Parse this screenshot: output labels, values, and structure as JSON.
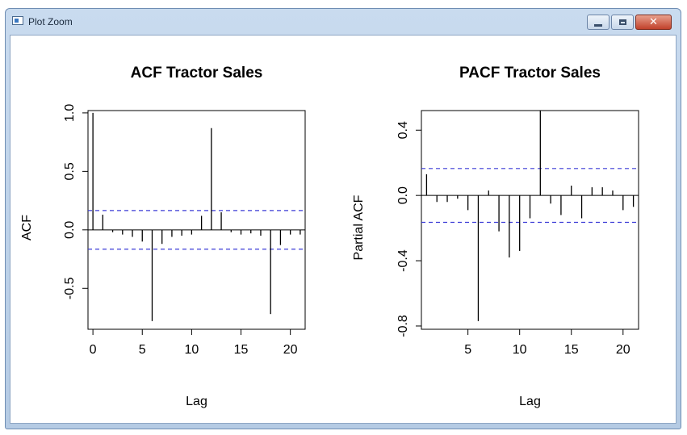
{
  "window": {
    "title": "Plot Zoom",
    "controls": {
      "minimize": "minimize",
      "maximize": "maximize",
      "close": "✕"
    }
  },
  "chart_data": [
    {
      "type": "bar",
      "title": "ACF Tractor Sales",
      "xlabel": "Lag",
      "ylabel": "ACF",
      "xlim": [
        -0.5,
        21.5
      ],
      "ylim": [
        -0.85,
        1.02
      ],
      "xticks": [
        0,
        5,
        10,
        15,
        20
      ],
      "xtick_labels": [
        "0",
        "5",
        "10",
        "15",
        "20"
      ],
      "yticks": [
        -0.5,
        0.0,
        0.5,
        1.0
      ],
      "ytick_labels": [
        "-0.5",
        "0.0",
        "0.5",
        "1.0"
      ],
      "confidence_band": [
        0.165,
        -0.165
      ],
      "x": [
        0,
        1,
        2,
        3,
        4,
        5,
        6,
        7,
        8,
        9,
        10,
        11,
        12,
        13,
        14,
        15,
        16,
        17,
        18,
        19,
        20,
        21
      ],
      "values": [
        1.0,
        0.13,
        -0.02,
        -0.04,
        -0.06,
        -0.1,
        -0.78,
        -0.12,
        -0.06,
        -0.05,
        -0.04,
        0.12,
        0.87,
        0.15,
        -0.02,
        -0.04,
        -0.03,
        -0.05,
        -0.72,
        -0.13,
        -0.04,
        -0.04
      ],
      "grid": false,
      "color": "#000000",
      "band_color": "#3b3bd6"
    },
    {
      "type": "bar",
      "title": "PACF Tractor Sales",
      "xlabel": "Lag",
      "ylabel": "Partial ACF",
      "xlim": [
        0.5,
        21.5
      ],
      "ylim": [
        -0.82,
        0.52
      ],
      "xticks": [
        5,
        10,
        15,
        20
      ],
      "xtick_labels": [
        "5",
        "10",
        "15",
        "20"
      ],
      "yticks": [
        -0.8,
        -0.4,
        0.0,
        0.4
      ],
      "ytick_labels": [
        "-0.8",
        "-0.4",
        "0.0",
        "0.4"
      ],
      "confidence_band": [
        0.165,
        -0.165
      ],
      "x": [
        1,
        2,
        3,
        4,
        5,
        6,
        7,
        8,
        9,
        10,
        11,
        12,
        13,
        14,
        15,
        16,
        17,
        18,
        19,
        20,
        21
      ],
      "values": [
        0.13,
        -0.04,
        -0.04,
        -0.02,
        -0.09,
        -0.77,
        0.03,
        -0.22,
        -0.38,
        -0.34,
        -0.14,
        0.52,
        -0.05,
        -0.12,
        0.06,
        -0.14,
        0.05,
        0.05,
        0.03,
        -0.09,
        -0.07
      ],
      "grid": false,
      "color": "#000000",
      "band_color": "#3b3bd6"
    }
  ]
}
